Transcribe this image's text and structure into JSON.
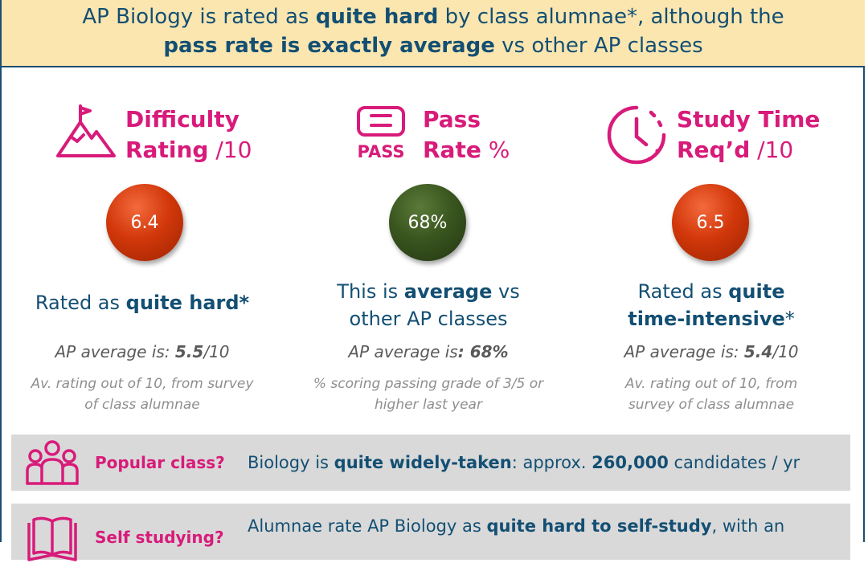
{
  "header": {
    "line1_a": "AP Biology is rated as ",
    "line1_b": "quite hard",
    "line1_c": " by class alumnae*, although the",
    "line2_a": "pass rate is exactly average",
    "line2_b": " vs other AP classes"
  },
  "colors": {
    "accent": "#d81b7a",
    "navy": "#134f73",
    "header_bg": "#fbe6b0",
    "red_ball": "#d2380b",
    "green_ball": "#3a561f",
    "band": "#d9d9d9"
  },
  "difficulty": {
    "icon": "mountain-flag-icon",
    "title_a": "Difficulty",
    "title_b": "Rating",
    "title_suffix": " /10",
    "value": "6.4",
    "desc_a": "Rated as ",
    "desc_b": "quite hard*",
    "avg_a": "AP average is: ",
    "avg_b": "5.5",
    "avg_c": "/10",
    "note": "Av. rating out of 10, from survey of class alumnae"
  },
  "pass": {
    "icon": "pass-badge-icon",
    "icon_text": "PASS",
    "title_a": "Pass",
    "title_b": "Rate",
    "title_suffix": " %",
    "value": "68%",
    "desc_a": "This is ",
    "desc_b": "average",
    "desc_c": " vs other AP classes",
    "avg_a": "AP average is",
    "avg_b": ": 68%",
    "note": "% scoring passing grade of 3/5 or higher last year"
  },
  "study": {
    "icon": "clock-icon",
    "title_a": "Study Time",
    "title_b": "Req’d",
    "title_suffix": " /10",
    "value": "6.5",
    "desc_a": "Rated as ",
    "desc_b": "quite",
    "desc_c": "time-intensive",
    "desc_d": "*",
    "avg_a": "AP average is: ",
    "avg_b": "5.4",
    "avg_c": "/10",
    "note": "Av. rating out of 10, from survey of class alumnae"
  },
  "popular": {
    "icon": "people-group-icon",
    "label": "Popular class?",
    "text_a": "Biology is ",
    "text_b": "quite widely-taken",
    "text_c": ": approx. ",
    "text_d": "260,000",
    "text_e": " candidates / yr"
  },
  "selfstudy": {
    "icon": "open-book-icon",
    "label": "Self studying?",
    "text_a": "Alumnae rate AP Biology as ",
    "text_b": "quite hard to self-study",
    "text_c": ", with an"
  }
}
